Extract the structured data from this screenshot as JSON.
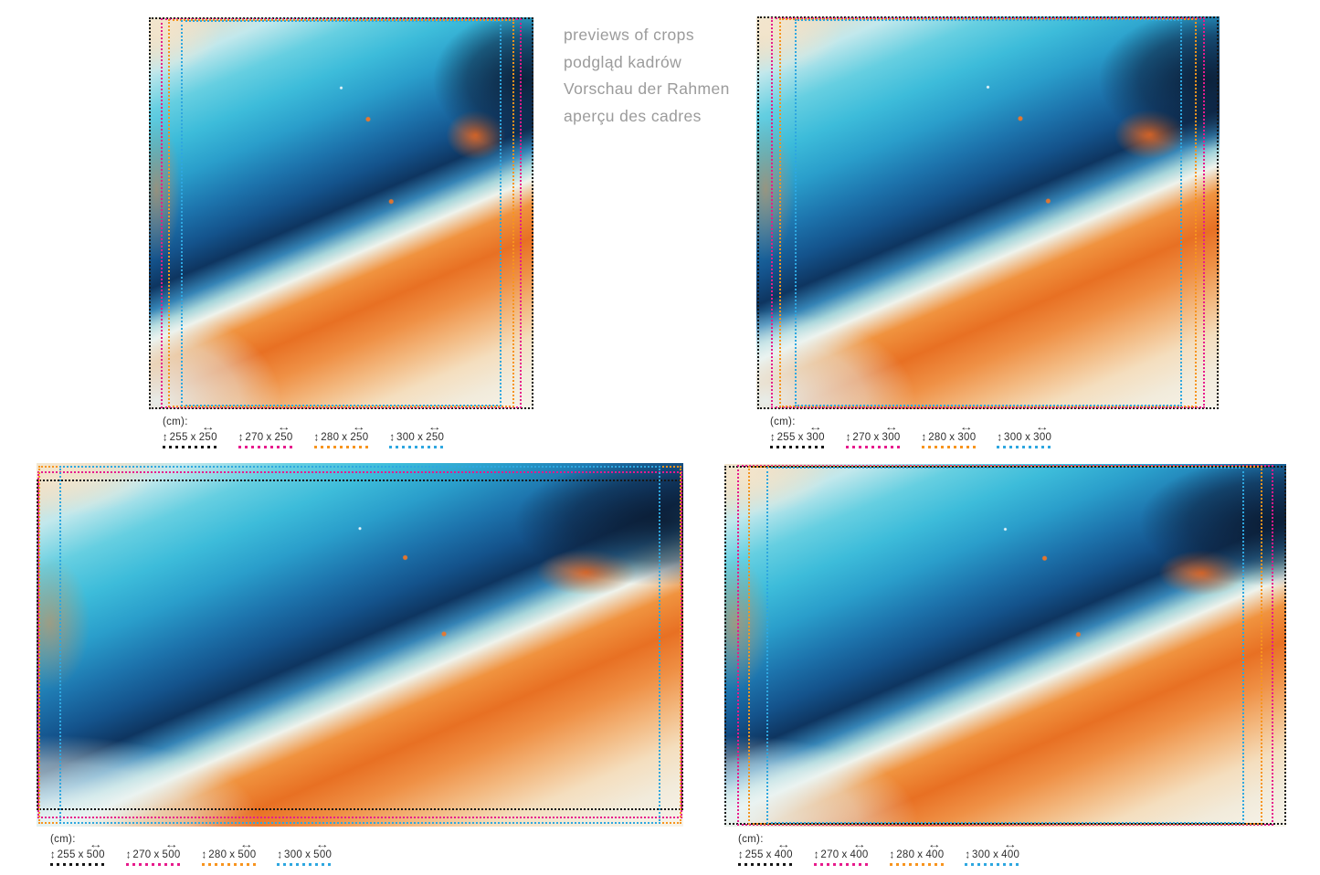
{
  "header": {
    "lines": [
      "previews of crops",
      "podgląd kadrów",
      "Vorschau der Rahmen",
      "aperçu des cadres"
    ]
  },
  "unit_label": "(cm):",
  "separator": "x",
  "icons": {
    "height_arrow": "↕",
    "width_arrow": "↔"
  },
  "frame_colors": {
    "black": "#161616",
    "magenta": "#e71b8c",
    "orange": "#f7941e",
    "blue": "#2ea7e0"
  },
  "artwork_palette": {
    "cream": "#f2e7d4",
    "light_cyan": "#c2e8ec",
    "cyan": "#3dbcda",
    "mid_blue": "#1d74ad",
    "navy": "#0e3560",
    "white_streak": "#eff3ec",
    "orange": "#e87023",
    "peach": "#f3b87f"
  },
  "panels": [
    {
      "name": "crop-preview-250-wide",
      "crops": [
        {
          "label": "255 x 250",
          "height_cm": 255,
          "width_cm": 250,
          "color": "black"
        },
        {
          "label": "270 x 250",
          "height_cm": 270,
          "width_cm": 250,
          "color": "magenta"
        },
        {
          "label": "280 x 250",
          "height_cm": 280,
          "width_cm": 250,
          "color": "orange"
        },
        {
          "label": "300 x 250",
          "height_cm": 300,
          "width_cm": 250,
          "color": "blue"
        }
      ]
    },
    {
      "name": "crop-preview-300-wide",
      "crops": [
        {
          "label": "255 x 300",
          "height_cm": 255,
          "width_cm": 300,
          "color": "black"
        },
        {
          "label": "270 x 300",
          "height_cm": 270,
          "width_cm": 300,
          "color": "magenta"
        },
        {
          "label": "280 x 300",
          "height_cm": 280,
          "width_cm": 300,
          "color": "orange"
        },
        {
          "label": "300 x 300",
          "height_cm": 300,
          "width_cm": 300,
          "color": "blue"
        }
      ]
    },
    {
      "name": "crop-preview-500-wide",
      "crops": [
        {
          "label": "255 x 500",
          "height_cm": 255,
          "width_cm": 500,
          "color": "black"
        },
        {
          "label": "270 x 500",
          "height_cm": 270,
          "width_cm": 500,
          "color": "magenta"
        },
        {
          "label": "280 x 500",
          "height_cm": 280,
          "width_cm": 500,
          "color": "orange"
        },
        {
          "label": "300 x 500",
          "height_cm": 300,
          "width_cm": 500,
          "color": "blue"
        }
      ]
    },
    {
      "name": "crop-preview-400-wide",
      "crops": [
        {
          "label": "255 x 400",
          "height_cm": 255,
          "width_cm": 400,
          "color": "black"
        },
        {
          "label": "270 x 400",
          "height_cm": 270,
          "width_cm": 400,
          "color": "magenta"
        },
        {
          "label": "280 x 400",
          "height_cm": 280,
          "width_cm": 400,
          "color": "orange"
        },
        {
          "label": "300 x 400",
          "height_cm": 300,
          "width_cm": 400,
          "color": "blue"
        }
      ]
    }
  ]
}
